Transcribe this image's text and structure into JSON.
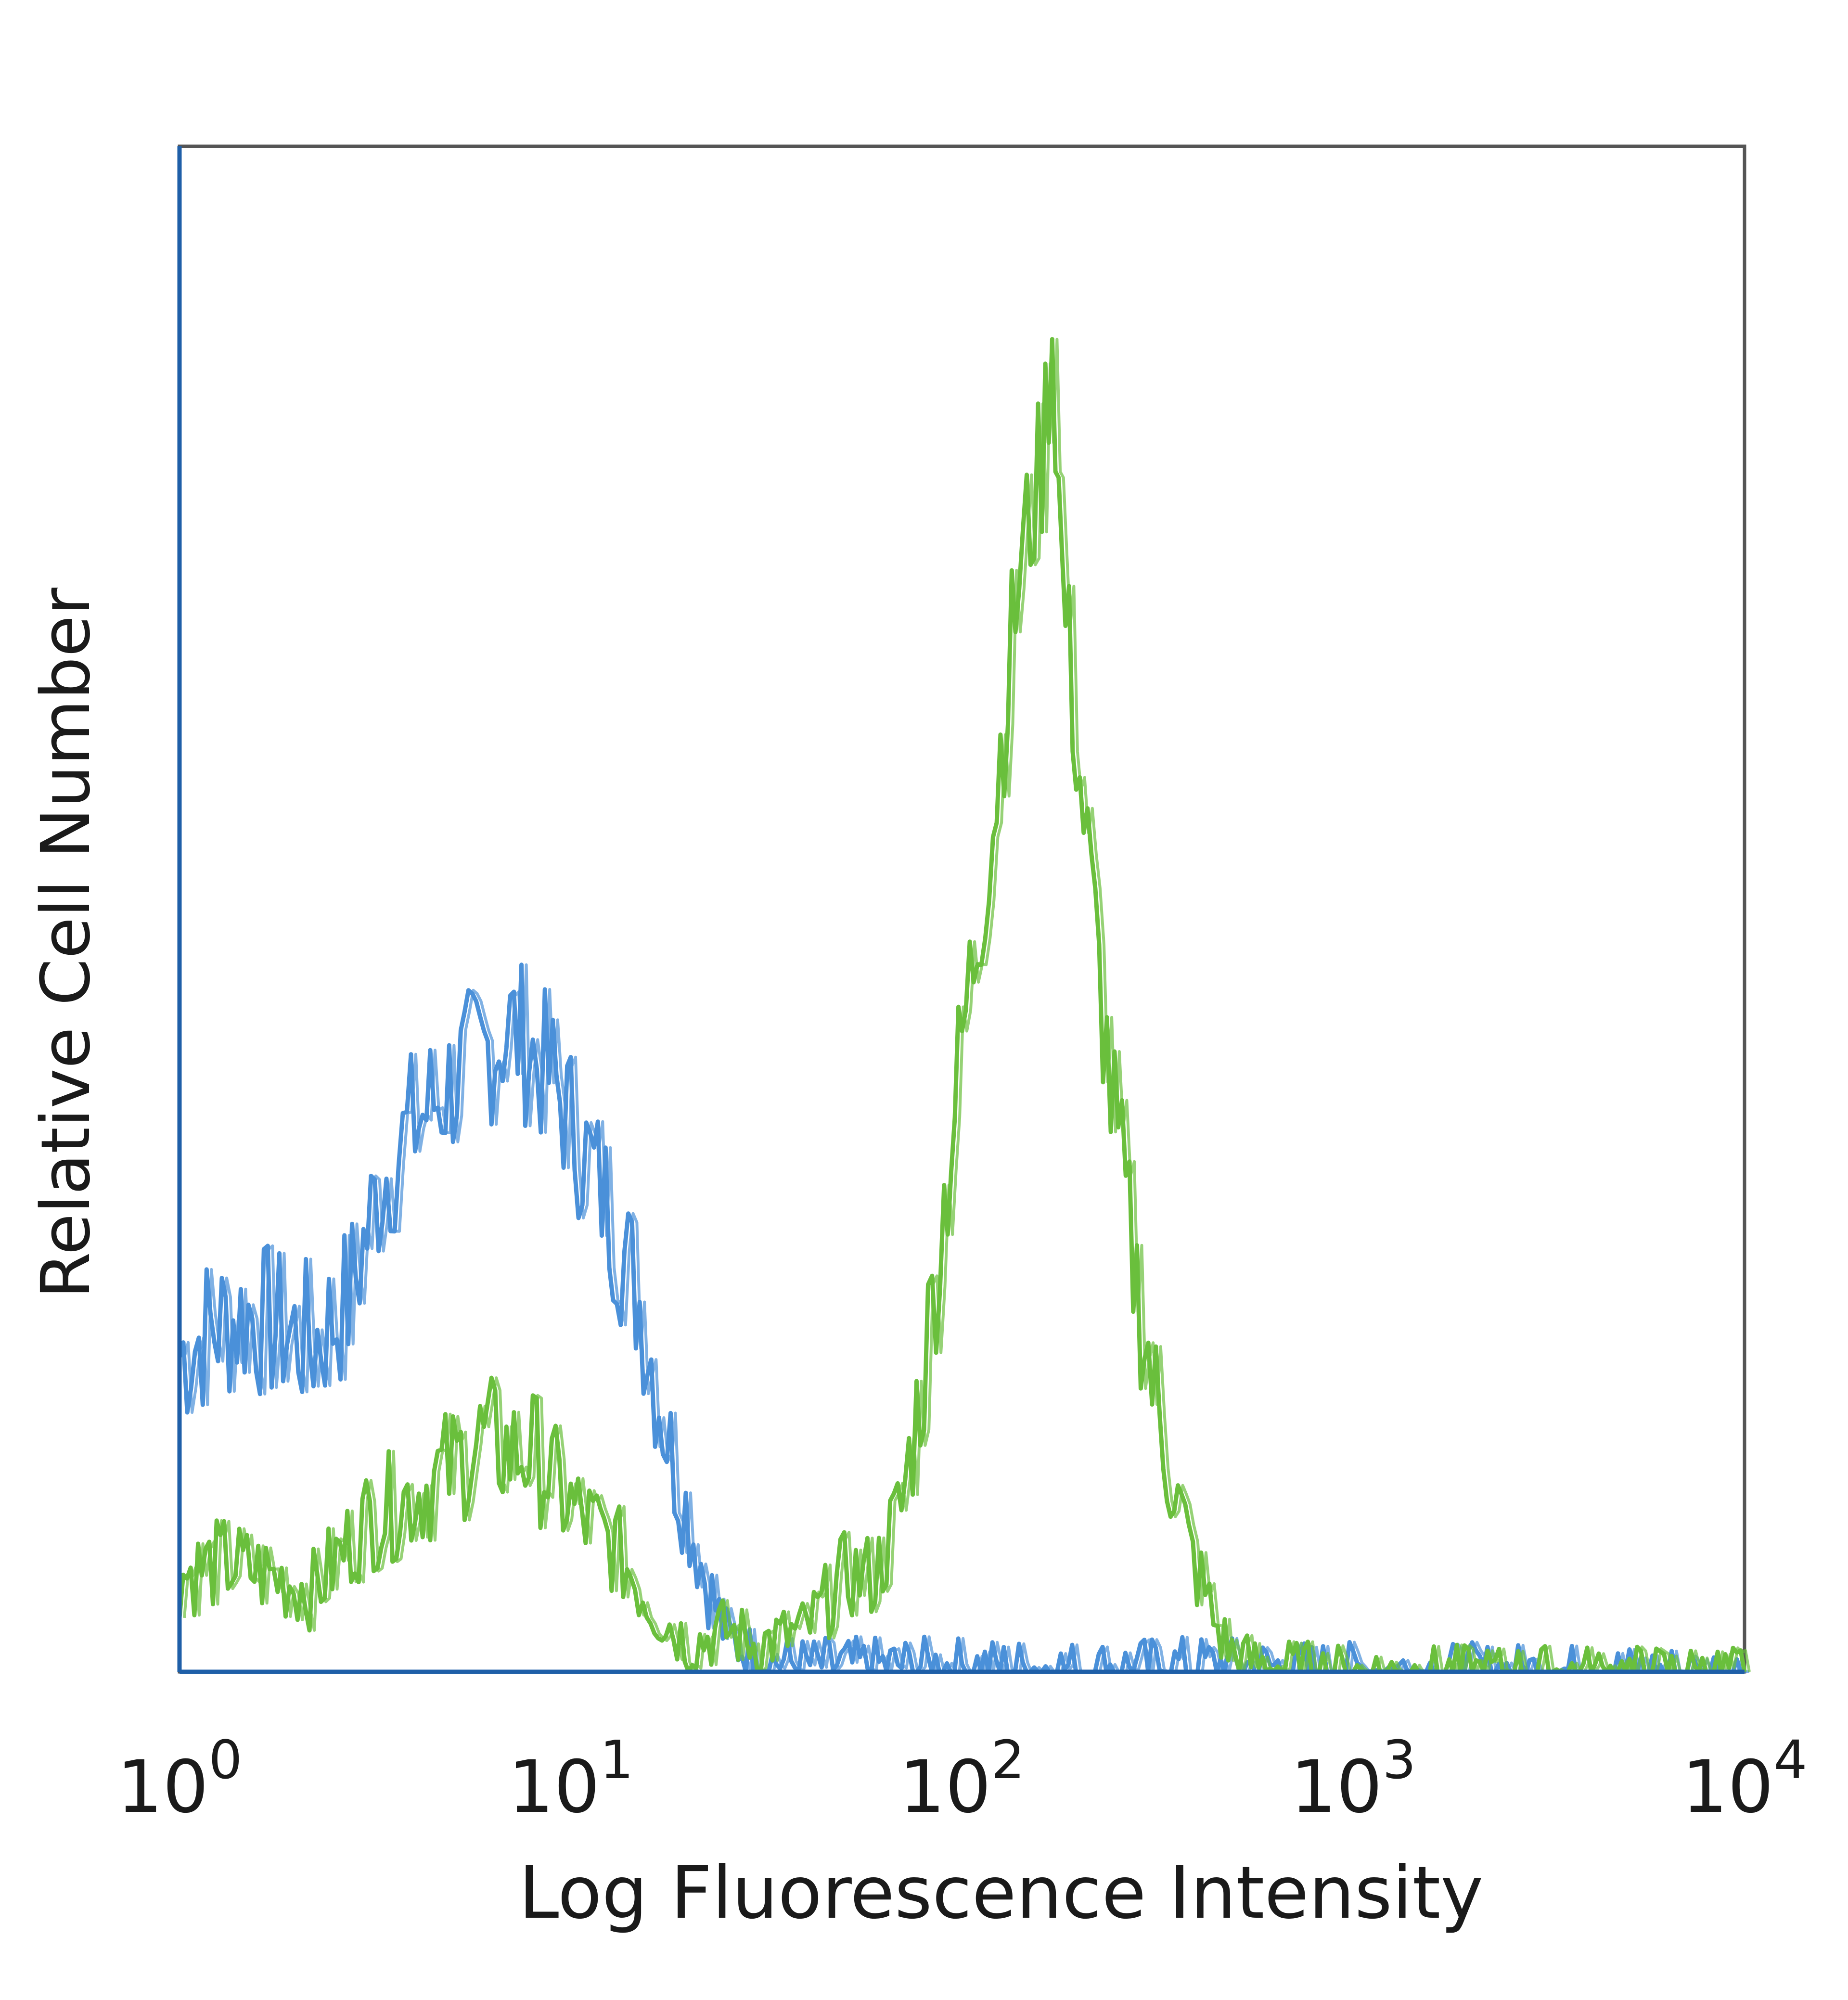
{
  "chart_data": {
    "type": "line",
    "title": "",
    "xlabel": "Log Fluorescence Intensity",
    "ylabel": "Relative Cell Number",
    "x_scale": "log",
    "xlim": [
      1,
      10000
    ],
    "ylim": [
      0,
      1
    ],
    "grid": false,
    "legend": "none",
    "x_ticks": [
      {
        "value": 1,
        "base": "10",
        "exp": "0"
      },
      {
        "value": 10,
        "base": "10",
        "exp": "1"
      },
      {
        "value": 100,
        "base": "10",
        "exp": "2"
      },
      {
        "value": 1000,
        "base": "10",
        "exp": "3"
      },
      {
        "value": 10000,
        "base": "10",
        "exp": "4"
      }
    ],
    "series": [
      {
        "color": "#4a90d9",
        "x": [
          1,
          1.2,
          1.5,
          1.8,
          2.2,
          2.7,
          3.3,
          4,
          5,
          6,
          7,
          8,
          9,
          10,
          12,
          15,
          18,
          22,
          25,
          30,
          40,
          60,
          100,
          200,
          400,
          600,
          1000,
          10000
        ],
        "y": [
          0.23,
          0.25,
          0.26,
          0.25,
          0.24,
          0.27,
          0.36,
          0.4,
          0.43,
          0.45,
          0.47,
          0.45,
          0.43,
          0.4,
          0.35,
          0.27,
          0.16,
          0.07,
          0.025,
          0.01,
          0.005,
          0.005,
          0.005,
          0.003,
          0.006,
          0.004,
          0.002,
          0.0
        ]
      },
      {
        "color": "#6abf3c",
        "x": [
          1,
          1.3,
          1.7,
          2.2,
          3,
          4,
          5,
          6,
          7,
          8,
          10,
          13,
          16,
          20,
          25,
          30,
          40,
          50,
          60,
          70,
          80,
          90,
          100,
          120,
          140,
          160,
          170,
          180,
          200,
          240,
          280,
          320,
          380,
          450,
          500,
          600,
          800,
          1000,
          10000
        ],
        "y": [
          0.07,
          0.08,
          0.07,
          0.06,
          0.11,
          0.13,
          0.15,
          0.17,
          0.16,
          0.16,
          0.12,
          0.09,
          0.05,
          0.02,
          0.03,
          0.02,
          0.03,
          0.07,
          0.07,
          0.12,
          0.22,
          0.34,
          0.46,
          0.62,
          0.8,
          0.88,
          0.98,
          0.8,
          0.65,
          0.42,
          0.28,
          0.18,
          0.09,
          0.03,
          0.01,
          0.005,
          0.002,
          0.0,
          0.0
        ]
      }
    ]
  }
}
